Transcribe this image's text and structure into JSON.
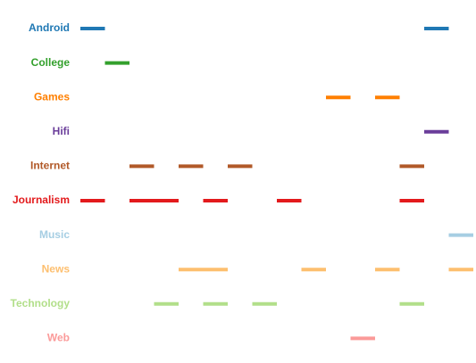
{
  "chart_data": {
    "type": "timeline",
    "xlim": [
      0,
      16
    ],
    "series": [
      {
        "name": "Android",
        "color": "#1f78b4",
        "segments": [
          [
            0,
            1
          ],
          [
            14,
            15
          ]
        ]
      },
      {
        "name": "College",
        "color": "#33a02c",
        "segments": [
          [
            1,
            2
          ]
        ]
      },
      {
        "name": "Games",
        "color": "#ff7f00",
        "segments": [
          [
            10,
            11
          ],
          [
            12,
            13
          ]
        ]
      },
      {
        "name": "Hifi",
        "color": "#6a3d9a",
        "segments": [
          [
            14,
            15
          ]
        ]
      },
      {
        "name": "Internet",
        "color": "#b15928",
        "segments": [
          [
            2,
            3
          ],
          [
            4,
            5
          ],
          [
            6,
            7
          ],
          [
            13,
            14
          ]
        ]
      },
      {
        "name": "Journalism",
        "color": "#e31a1c",
        "segments": [
          [
            0,
            1
          ],
          [
            2,
            4
          ],
          [
            5,
            6
          ],
          [
            8,
            9
          ],
          [
            13,
            14
          ]
        ]
      },
      {
        "name": "Music",
        "color": "#a6cee3",
        "segments": [
          [
            15,
            16
          ]
        ]
      },
      {
        "name": "News",
        "color": "#fdbf6f",
        "segments": [
          [
            4,
            6
          ],
          [
            9,
            10
          ],
          [
            12,
            13
          ],
          [
            15,
            16
          ]
        ]
      },
      {
        "name": "Technology",
        "color": "#b2df8a",
        "segments": [
          [
            3,
            4
          ],
          [
            5,
            6
          ],
          [
            7,
            8
          ],
          [
            13,
            14
          ]
        ]
      },
      {
        "name": "Web",
        "color": "#fb9a99",
        "segments": [
          [
            11,
            12
          ]
        ]
      }
    ]
  }
}
